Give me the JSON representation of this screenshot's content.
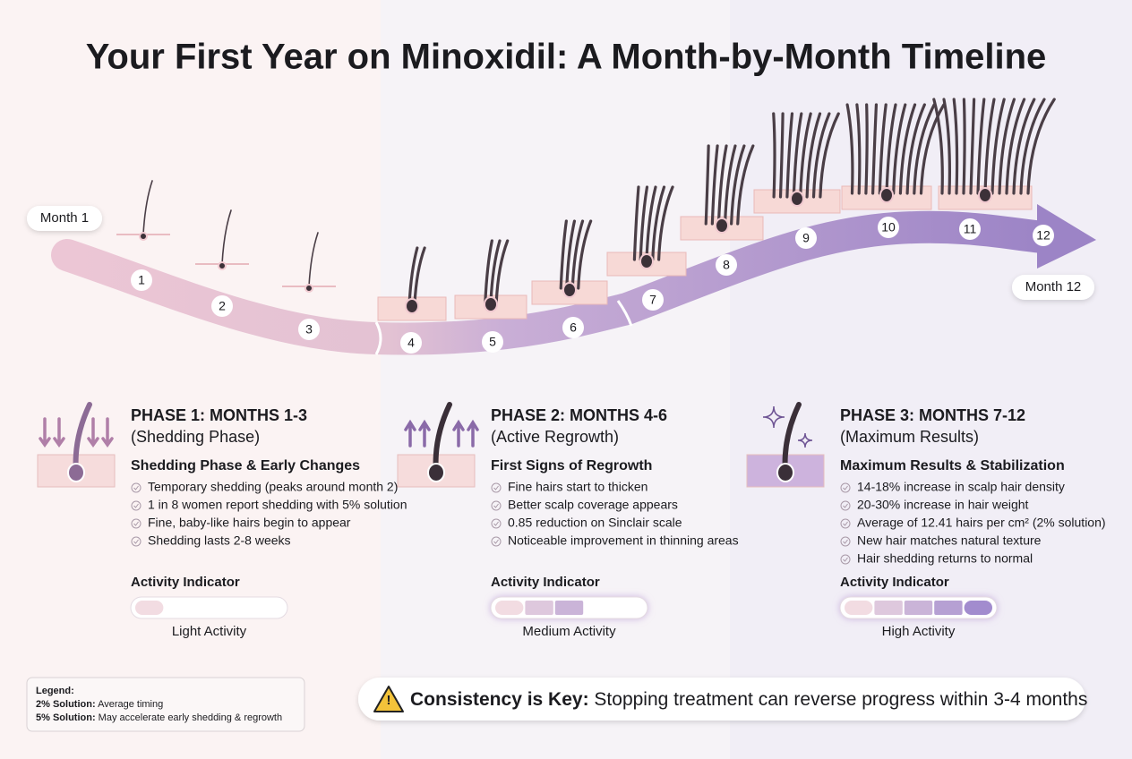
{
  "title": "Your First Year on Minoxidil: A Month-by-Month Timeline",
  "timeline": {
    "start_label": "Month 1",
    "end_label": "Month 12",
    "months": [
      1,
      2,
      3,
      4,
      5,
      6,
      7,
      8,
      9,
      10,
      11,
      12
    ]
  },
  "activity_scale": 5,
  "phases": [
    {
      "title": "PHASE 1: MONTHS 1-3",
      "subtitle": "(Shedding Phase)",
      "heading": "Shedding Phase & Early Changes",
      "items": [
        "Temporary shedding (peaks around month 2)",
        "1 in 8 women report shedding with 5% solution",
        "Fine, baby-like hairs begin to appear",
        "Shedding lasts 2-8 weeks"
      ],
      "activity_label": "Activity Indicator",
      "activity_segments": 1,
      "activity_level": "Light Activity"
    },
    {
      "title": "PHASE 2: MONTHS 4-6",
      "subtitle": "(Active Regrowth)",
      "heading": "First Signs of Regrowth",
      "items": [
        "Fine hairs start to thicken",
        "Better scalp coverage appears",
        "0.85 reduction on Sinclair scale",
        "Noticeable improvement in thinning areas"
      ],
      "activity_label": "Activity Indicator",
      "activity_segments": 3,
      "activity_level": "Medium Activity"
    },
    {
      "title": "PHASE 3: MONTHS 7-12",
      "subtitle": "(Maximum Results)",
      "heading": "Maximum Results & Stabilization",
      "items": [
        "14-18% increase in scalp hair density",
        "20-30% increase in hair weight",
        "Average of 12.41 hairs per cm² (2% solution)",
        "New hair matches natural texture",
        "Hair shedding returns to normal"
      ],
      "activity_label": "Activity Indicator",
      "activity_segments": 5,
      "activity_level": "High Activity"
    }
  ],
  "legend": {
    "title": "Legend:",
    "entries": [
      {
        "label": "2% Solution:",
        "text": "Average timing"
      },
      {
        "label": "5% Solution:",
        "text": "May accelerate early shedding & regrowth"
      }
    ]
  },
  "callout": {
    "label": "Consistency is Key:",
    "text": "Stopping treatment can reverse progress within 3-4 months"
  }
}
